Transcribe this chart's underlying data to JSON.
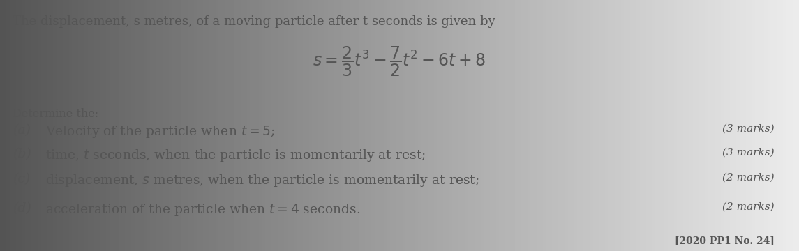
{
  "bg_color": "#d2d2d2",
  "text_color": "#555555",
  "intro_line": "The displacement, s metres, of a moving particle after t seconds is given by",
  "equation_main": "$s = \\dfrac{2}{3}t^3 - \\dfrac{7}{2}t^2 - 6t + 8$",
  "determine_label": "Determine the:",
  "parts": [
    {
      "label": "(a)",
      "text": "Velocity of the particle when $t = 5$;",
      "marks": "(3 marks)"
    },
    {
      "label": "(b)",
      "text": "time, $t$ seconds, when the particle is momentarily at rest;",
      "marks": "(3 marks)"
    },
    {
      "label": "(c)",
      "text": "displacement, $s$ metres, when the particle is momentarily at rest;",
      "marks": "(2 marks)"
    },
    {
      "label": "(d)",
      "text": "acceleration of the particle when $t = 4$ seconds.",
      "marks": "(2 marks)"
    }
  ],
  "footer": "[2020 PP1 No. 24]",
  "intro_fontsize": 13.0,
  "eq_fontsize": 17,
  "determine_fontsize": 11.5,
  "parts_fontsize": 13.5,
  "marks_fontsize": 11,
  "footer_fontsize": 10
}
